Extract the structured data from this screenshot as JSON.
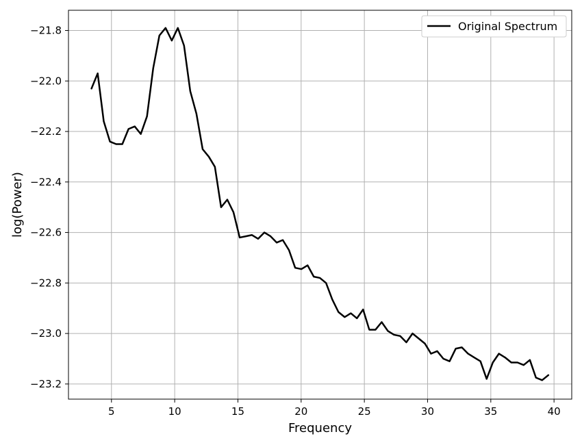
{
  "chart_data": {
    "type": "line",
    "title": "",
    "xlabel": "Frequency",
    "ylabel": "log(Power)",
    "xlim": [
      1.6,
      41.4
    ],
    "ylim": [
      -23.26,
      -21.72
    ],
    "xticks": [
      5,
      10,
      15,
      20,
      25,
      30,
      35,
      40
    ],
    "yticks": [
      -21.8,
      -22.0,
      -22.2,
      -22.4,
      -22.6,
      -22.8,
      -23.0,
      -23.2
    ],
    "xtick_labels": [
      "5",
      "10",
      "15",
      "20",
      "25",
      "30",
      "35",
      "40"
    ],
    "ytick_labels": [
      "−21.8",
      "−22.0",
      "−22.2",
      "−22.4",
      "−22.6",
      "−22.8",
      "−23.0",
      "−23.2"
    ],
    "grid": true,
    "legend": {
      "position": "top-right",
      "entries": [
        "Original Spectrum"
      ]
    },
    "series": [
      {
        "name": "Original Spectrum",
        "color": "#000000",
        "x": [
          3.42,
          3.91,
          4.39,
          4.88,
          5.37,
          5.86,
          6.35,
          6.84,
          7.32,
          7.81,
          8.3,
          8.79,
          9.28,
          9.77,
          10.25,
          10.74,
          11.23,
          11.72,
          12.21,
          12.7,
          13.18,
          13.67,
          14.16,
          14.65,
          15.14,
          15.63,
          16.11,
          16.6,
          17.09,
          17.58,
          18.07,
          18.55,
          19.04,
          19.53,
          20.02,
          20.51,
          21.0,
          21.48,
          21.97,
          22.46,
          22.95,
          23.44,
          23.93,
          24.41,
          24.9,
          25.39,
          25.88,
          26.37,
          26.86,
          27.34,
          27.83,
          28.32,
          28.81,
          29.3,
          29.79,
          30.27,
          30.76,
          31.25,
          31.74,
          32.23,
          32.71,
          33.2,
          33.69,
          34.18,
          34.67,
          35.16,
          35.64,
          36.13,
          36.62,
          37.11,
          37.6,
          38.09,
          38.57,
          39.06,
          39.55
        ],
        "y": [
          -22.03,
          -21.97,
          -22.16,
          -22.24,
          -22.25,
          -22.25,
          -22.19,
          -22.18,
          -22.21,
          -22.14,
          -21.95,
          -21.82,
          -21.79,
          -21.84,
          -21.79,
          -21.86,
          -22.04,
          -22.13,
          -22.27,
          -22.3,
          -22.34,
          -22.5,
          -22.47,
          -22.52,
          -22.62,
          -22.615,
          -22.61,
          -22.625,
          -22.6,
          -22.615,
          -22.64,
          -22.63,
          -22.67,
          -22.74,
          -22.745,
          -22.73,
          -22.775,
          -22.78,
          -22.8,
          -22.865,
          -22.915,
          -22.935,
          -22.92,
          -22.94,
          -22.905,
          -22.985,
          -22.985,
          -22.955,
          -22.99,
          -23.005,
          -23.01,
          -23.035,
          -23.0,
          -23.02,
          -23.04,
          -23.08,
          -23.07,
          -23.1,
          -23.11,
          -23.06,
          -23.055,
          -23.08,
          -23.095,
          -23.11,
          -23.18,
          -23.115,
          -23.08,
          -23.095,
          -23.115,
          -23.115,
          -23.125,
          -23.105,
          -23.175,
          -23.185,
          -23.165
        ]
      }
    ]
  }
}
